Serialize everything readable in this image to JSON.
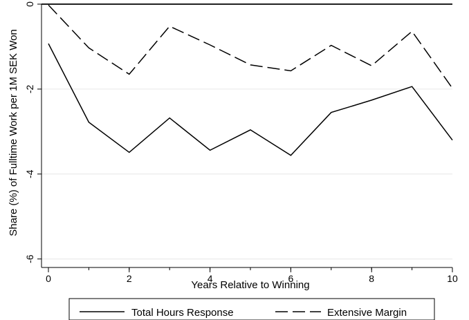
{
  "chart_data": {
    "type": "line",
    "title": "",
    "xlabel": "Years Relative to Winning",
    "ylabel": "Share (%) of Fulltime Work per 1M SEK Won",
    "x": [
      0,
      1,
      2,
      3,
      4,
      5,
      6,
      7,
      8,
      9,
      10
    ],
    "xlim": [
      0,
      10
    ],
    "ylim": [
      -6.2,
      0
    ],
    "xticks": [
      0,
      2,
      4,
      6,
      8,
      10
    ],
    "xtick_labels": [
      "0",
      "2",
      "4",
      "6",
      "8",
      "10"
    ],
    "yticks": [
      0,
      -2,
      -4,
      -6
    ],
    "ytick_labels": [
      "0",
      "-2",
      "-4",
      "-6"
    ],
    "grid": "horizontal",
    "reference_line": 0,
    "legend_position": "bottom",
    "series": [
      {
        "name": "Total Hours Response",
        "style": "solid",
        "color": "#000000",
        "values": [
          -0.93,
          -2.78,
          -3.49,
          -2.68,
          -3.44,
          -2.96,
          -3.56,
          -2.55,
          -2.26,
          -1.94,
          -3.2
        ]
      },
      {
        "name": "Extensive Margin",
        "style": "dashed",
        "color": "#000000",
        "values": [
          -0.02,
          -1.03,
          -1.65,
          -0.52,
          -0.96,
          -1.43,
          -1.57,
          -0.97,
          -1.45,
          -0.64,
          -1.98
        ]
      }
    ]
  }
}
